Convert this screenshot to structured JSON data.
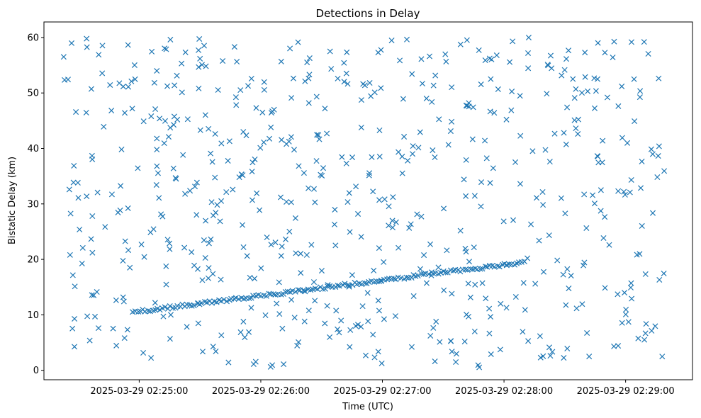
{
  "chart_data": {
    "type": "scatter",
    "title": "Detections in Delay",
    "xlabel": "Time (UTC)",
    "ylabel": "Bistatic Delay (km)",
    "x_tick_labels": [
      "2025-03-29 02:25:00",
      "2025-03-29 02:26:00",
      "2025-03-29 02:27:00",
      "2025-03-29 02:28:00",
      "2025-03-29 02:29:00"
    ],
    "y_ticks": [
      0,
      10,
      20,
      30,
      40,
      50,
      60
    ],
    "xlim": [
      "2025-03-29 02:24:13",
      "2025-03-29 02:29:33"
    ],
    "ylim": [
      -1.7,
      62.8
    ],
    "grid": false,
    "marker": "x",
    "color": "#1f77b4",
    "track": {
      "start": [
        "2025-03-29 02:24:57",
        10.5
      ],
      "end": [
        "2025-03-29 02:28:10",
        19.5
      ],
      "count": 160
    },
    "noise": {
      "count": 620,
      "time_range": [
        "2025-03-29 02:24:22",
        "2025-03-29 02:29:20"
      ],
      "delay_range": [
        0.5,
        60
      ]
    }
  }
}
